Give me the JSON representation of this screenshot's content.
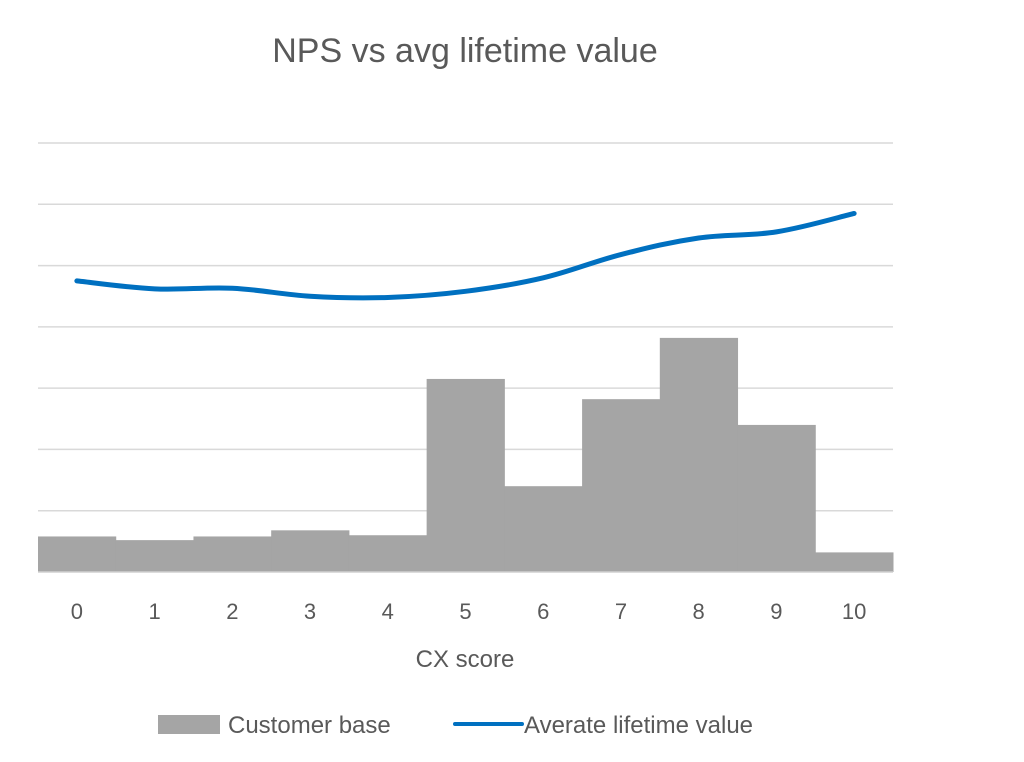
{
  "chart_data": {
    "type": "bar",
    "title": "NPS vs avg lifetime value",
    "xlabel": "CX score",
    "ylabel": "",
    "categories": [
      "0",
      "1",
      "2",
      "3",
      "4",
      "5",
      "6",
      "7",
      "8",
      "9",
      "10"
    ],
    "ylim": [
      0,
      7
    ],
    "grid": true,
    "legend_position": "bottom",
    "series": [
      {
        "name": "Customer base",
        "kind": "bar",
        "color": "#a5a5a5",
        "values": [
          0.58,
          0.52,
          0.58,
          0.68,
          0.6,
          3.15,
          1.4,
          2.82,
          3.82,
          2.4,
          0.32
        ]
      },
      {
        "name": "Averate lifetime value",
        "kind": "line",
        "color": "#0070c0",
        "values": [
          4.75,
          4.62,
          4.63,
          4.5,
          4.48,
          4.58,
          4.8,
          5.18,
          5.45,
          5.55,
          5.85
        ]
      }
    ]
  }
}
